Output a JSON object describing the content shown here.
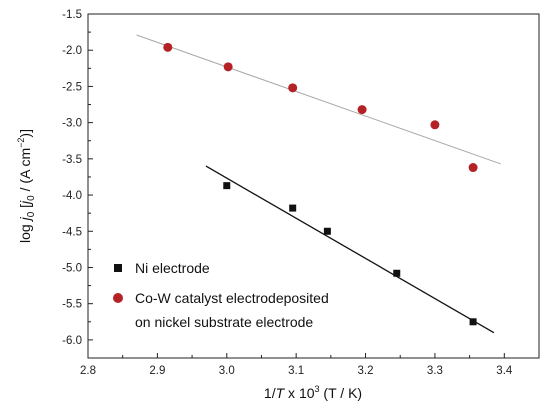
{
  "chart_data": {
    "type": "scatter",
    "xlabel": "1/T x 10^3 (T / K)",
    "xlabel_parts": {
      "prefix": "1/",
      "var": "T",
      "mid": " x 10",
      "sup": "3",
      "suffix": " (T / K)"
    },
    "ylabel": "log j0 [j0 / (A cm^-2)]",
    "ylabel_parts": {
      "log": "log ",
      "j": "j",
      "sub": "0",
      "bracket_open": "   [",
      "j2": "j",
      "sub2": "0",
      "unit_open": " / (A cm",
      "unit_sup": "−2",
      "unit_close": ")]"
    },
    "xlim": [
      2.8,
      3.45
    ],
    "ylim": [
      -6.25,
      -1.5
    ],
    "xticks": [
      2.8,
      2.9,
      3.0,
      3.1,
      3.2,
      3.3,
      3.4
    ],
    "xtick_labels": [
      "2.8",
      "2.9",
      "3.0",
      "3.1",
      "3.2",
      "3.3",
      "3.4"
    ],
    "yticks": [
      -1.5,
      -2.0,
      -2.5,
      -3.0,
      -3.5,
      -4.0,
      -4.5,
      -5.0,
      -5.5,
      -6.0
    ],
    "ytick_labels": [
      "-1.5",
      "-2.0",
      "-2.5",
      "-3.0",
      "-3.5",
      "-4.0",
      "-4.5",
      "-5.0",
      "-5.5",
      "-6.0"
    ],
    "grid": false,
    "legend_position": "bottom-left",
    "series": [
      {
        "name": "Ni electrode",
        "marker": "square",
        "color": "#111111",
        "x": [
          3.0,
          3.095,
          3.145,
          3.245,
          3.355
        ],
        "y": [
          -3.87,
          -4.18,
          -4.5,
          -5.08,
          -5.75
        ],
        "fit": {
          "x": [
            2.97,
            3.385
          ],
          "y": [
            -3.6,
            -5.9
          ],
          "color": "#111111"
        }
      },
      {
        "name": "Co-W catalyst electrodeposited",
        "name_line2": "on nickel substrate electrode",
        "marker": "circle",
        "color": "#b52226",
        "x": [
          2.915,
          3.002,
          3.095,
          3.195,
          3.3,
          3.355
        ],
        "y": [
          -1.96,
          -2.23,
          -2.52,
          -2.82,
          -3.03,
          -3.62
        ],
        "fit": {
          "x": [
            2.87,
            3.395
          ],
          "y": [
            -1.79,
            -3.57
          ],
          "color": "#a8a8a8"
        }
      }
    ]
  }
}
